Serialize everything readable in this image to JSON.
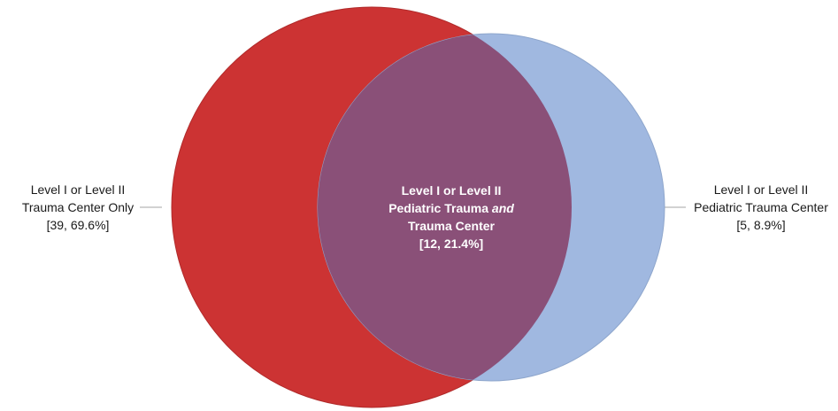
{
  "colors": {
    "red_circle": "#cc3333",
    "blue_circle": "#a0b8e0",
    "overlap": "#8a5078",
    "leader_line": "#a6a6a6"
  },
  "labels": {
    "left": {
      "line1": "Level I or Level II",
      "line2": "Trauma Center Only",
      "line3": "[39, 69.6%]"
    },
    "center": {
      "line1": "Level I or Level II",
      "line2_main": "Pediatric Trauma ",
      "line2_italic": "and",
      "line3": "Trauma Center",
      "line4": "[12, 21.4%]"
    },
    "right": {
      "line1": "Level I or Level II",
      "line2": "Pediatric Trauma Center",
      "line3": "[5, 8.9%]"
    }
  }
}
